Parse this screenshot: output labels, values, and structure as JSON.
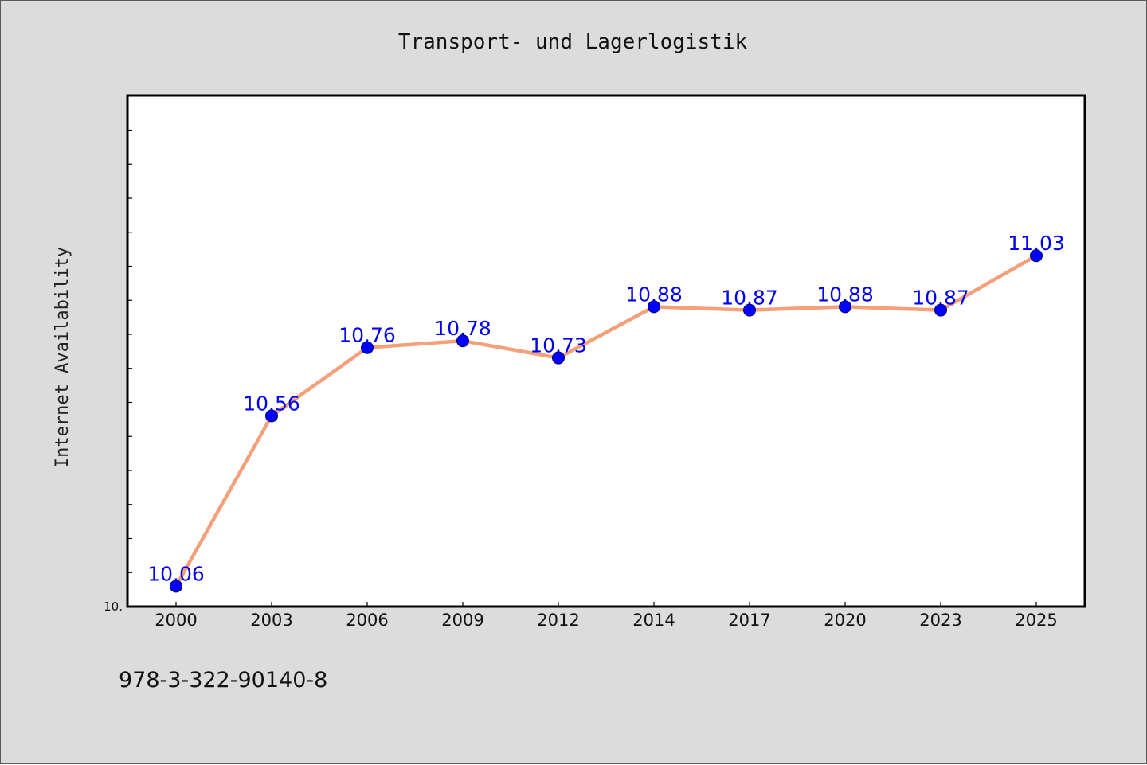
{
  "chart_data": {
    "type": "line",
    "title": "Transport- und Lagerlogistik",
    "ylabel": "Internet Availability",
    "xlabel": "",
    "categories": [
      "2000",
      "2003",
      "2006",
      "2009",
      "2012",
      "2014",
      "2017",
      "2020",
      "2023",
      "2025"
    ],
    "series": [
      {
        "values": [
          10.06,
          10.56,
          10.76,
          10.78,
          10.73,
          10.88,
          10.87,
          10.88,
          10.87,
          11.03
        ],
        "labels": [
          "10.06",
          "10.56",
          "10.76",
          "10.78",
          "10.73",
          "10.88",
          "10.87",
          "10.88",
          "10.87",
          "11.03"
        ],
        "line_color": "#f4a07a",
        "marker_color": "#0000ff"
      }
    ],
    "ylim": [
      10.0,
      11.5
    ],
    "y_tick_label": "10.",
    "grid": false,
    "legend": "none",
    "colors": {
      "background": "#dcdcdc",
      "plot_background": "#ffffff",
      "data_label": "#0000ee"
    }
  },
  "footer": {
    "isbn": "978-3-322-90140-8"
  }
}
